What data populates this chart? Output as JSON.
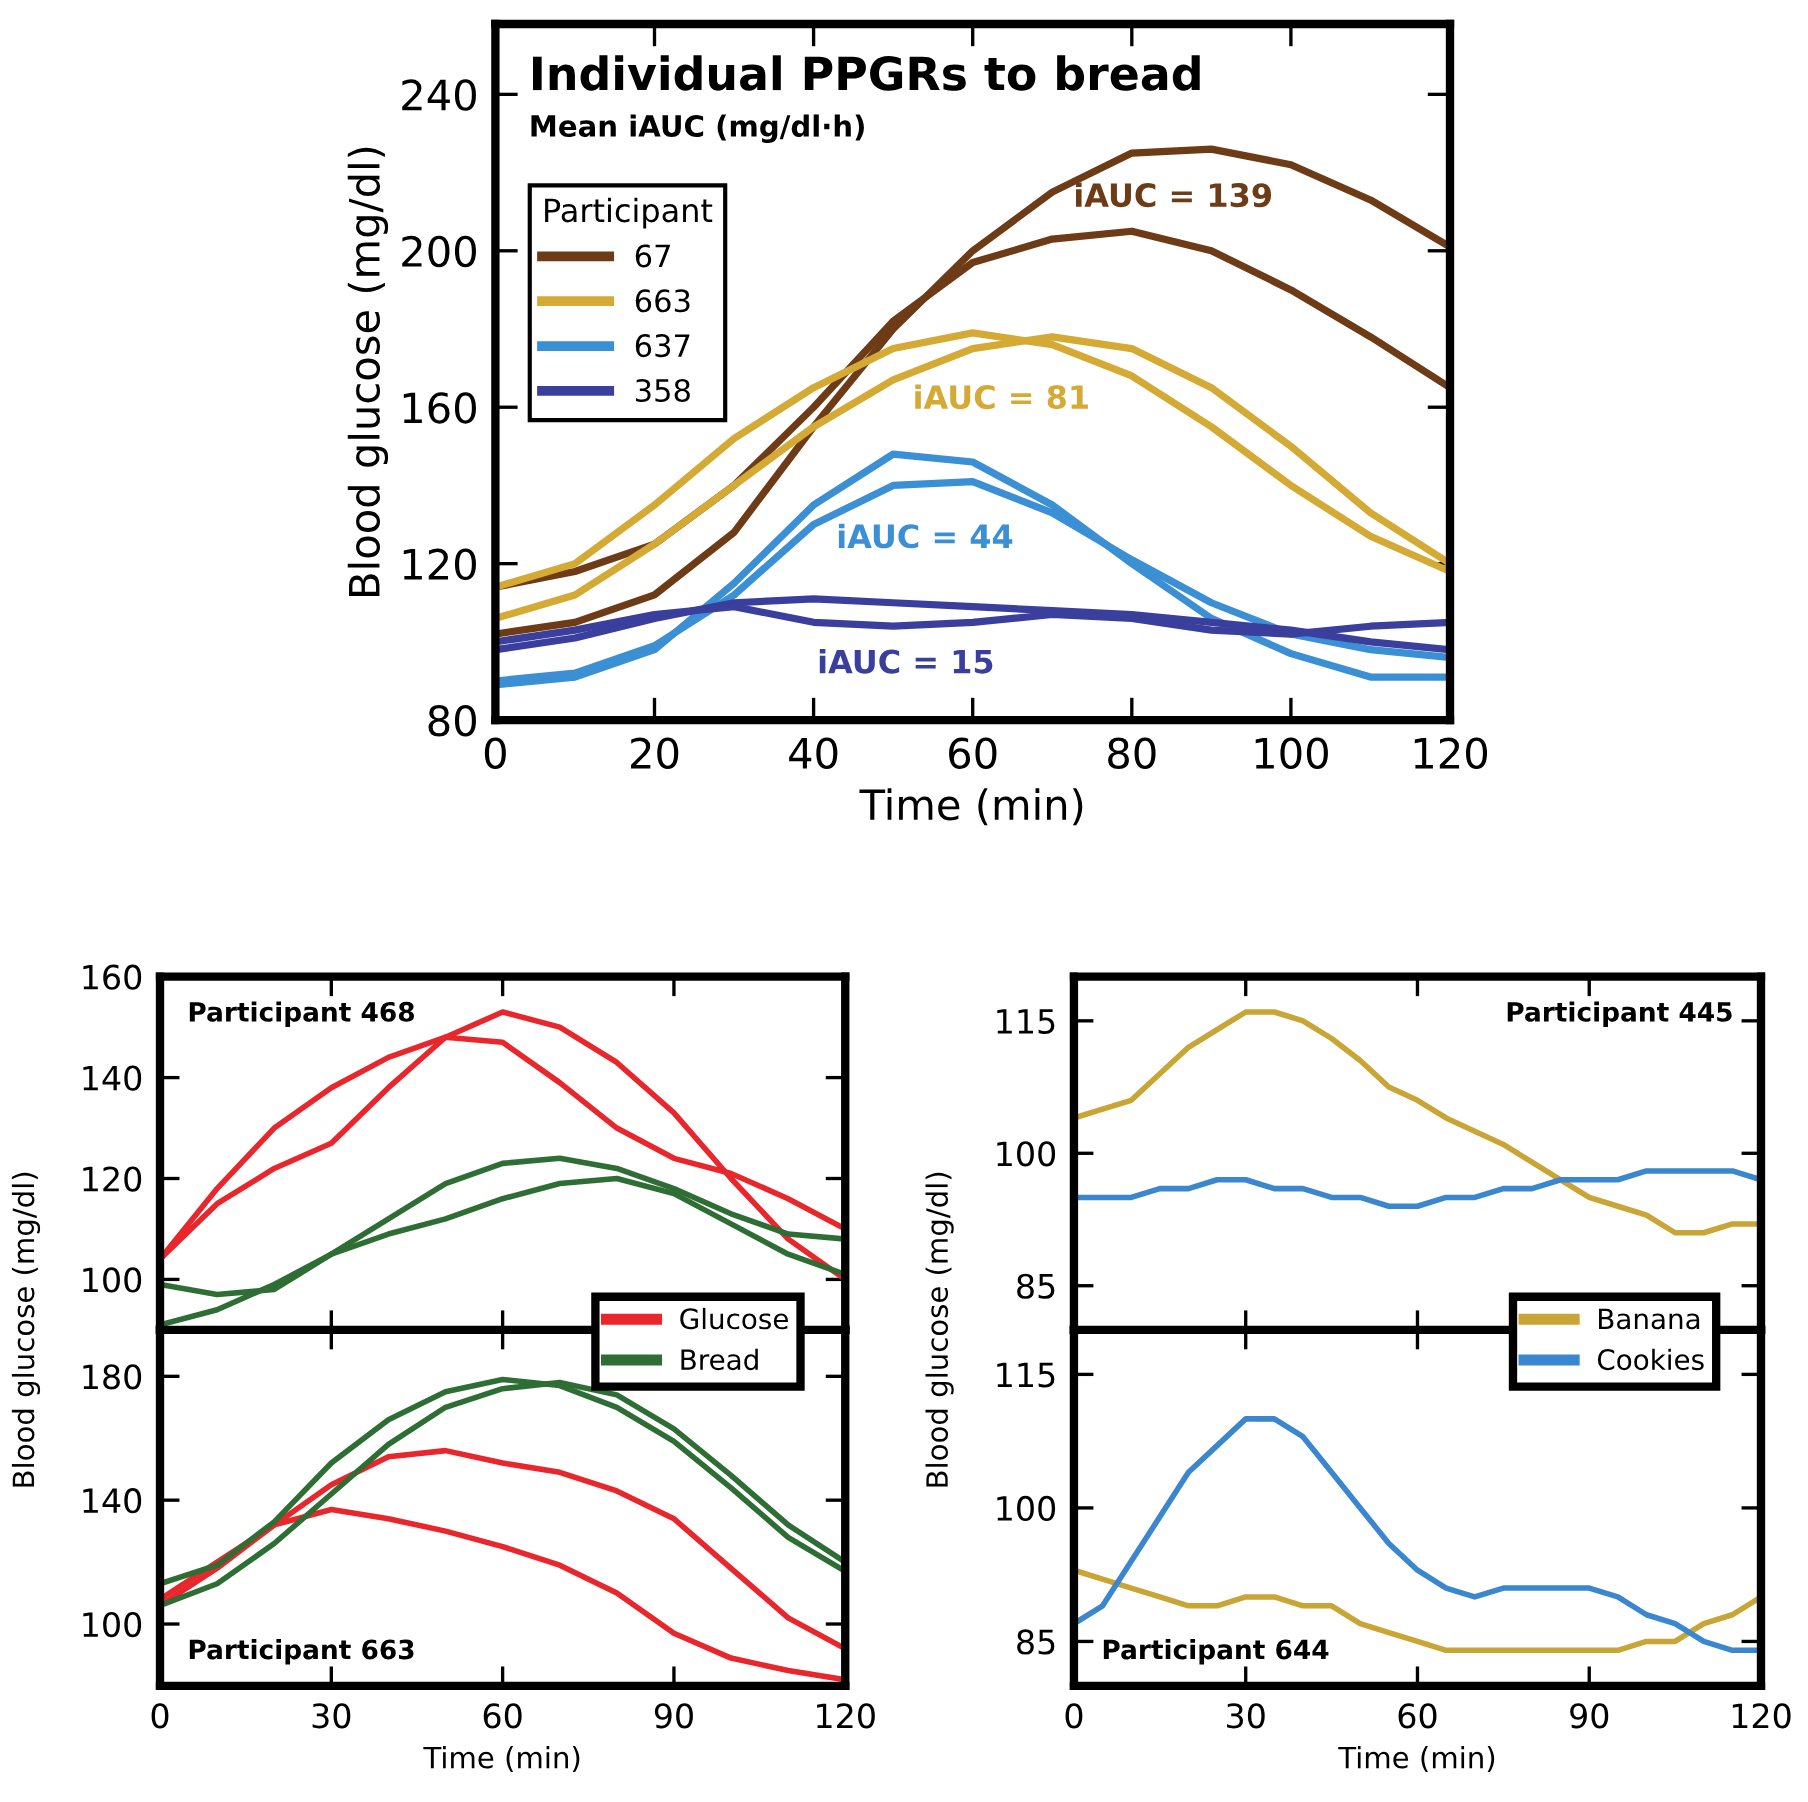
{
  "chart_data": [
    {
      "type": "line",
      "title": "Individual PPGRs to bread",
      "subtitle": "Mean iAUC (mg/dl·h)",
      "xlabel": "Time (min)",
      "ylabel": "Blood glucose (mg/dl)",
      "legend_title": "Participant",
      "legend": "top left",
      "x": [
        0,
        10,
        20,
        30,
        40,
        50,
        60,
        70,
        80,
        90,
        100,
        110,
        120
      ],
      "xlim": [
        0,
        120
      ],
      "xticks": [
        0,
        20,
        40,
        60,
        80,
        100,
        120
      ],
      "ylim": [
        80,
        258
      ],
      "yticks": [
        80,
        120,
        160,
        200,
        240
      ],
      "series": [
        {
          "name": "67",
          "color": "#6e3b17",
          "values": [
            102,
            105,
            112,
            128,
            155,
            180,
            200,
            215,
            225,
            226,
            222,
            213,
            201
          ]
        },
        {
          "color": "#6e3b17",
          "values": [
            114,
            118,
            125,
            140,
            160,
            182,
            197,
            203,
            205,
            200,
            190,
            178,
            165
          ]
        },
        {
          "name": "663",
          "color": "#d4aa35",
          "values": [
            114,
            120,
            135,
            152,
            165,
            175,
            179,
            176,
            168,
            155,
            140,
            127,
            118
          ]
        },
        {
          "color": "#d4aa35",
          "values": [
            106,
            112,
            125,
            140,
            155,
            167,
            175,
            178,
            175,
            165,
            150,
            133,
            120
          ]
        },
        {
          "name": "637",
          "color": "#3b8fd4",
          "values": [
            89,
            91,
            98,
            115,
            135,
            148,
            146,
            135,
            120,
            106,
            97,
            91,
            91
          ]
        },
        {
          "color": "#3b8fd4",
          "values": [
            90,
            92,
            99,
            112,
            130,
            140,
            141,
            133,
            121,
            110,
            102,
            98,
            96
          ]
        },
        {
          "name": "358",
          "color": "#3a3f9e",
          "values": [
            98,
            101,
            106,
            110,
            111,
            110,
            109,
            108,
            107,
            105,
            103,
            100,
            98
          ]
        },
        {
          "color": "#3a3f9e",
          "values": [
            100,
            103,
            107,
            109,
            105,
            104,
            105,
            107,
            106,
            103,
            102,
            104,
            105
          ]
        }
      ],
      "annotations": [
        "iAUC = 139",
        "iAUC = 81",
        "iAUC = 44",
        "iAUC = 15"
      ]
    },
    {
      "type": "line",
      "ylabel": "Blood glucose (mg/dl)",
      "legend": "bottom right",
      "tick_labels": "y",
      "x": [
        0,
        10,
        20,
        30,
        40,
        50,
        60,
        70,
        80,
        90,
        100,
        110,
        120
      ],
      "xlim": [
        0,
        120
      ],
      "xticks": [
        0,
        30,
        60,
        90,
        120
      ],
      "ylim": [
        90,
        160
      ],
      "yticks": [
        100,
        120,
        140,
        160
      ],
      "series": [
        {
          "name": "Glucose",
          "color": "#e8262c",
          "values": [
            104,
            118,
            130,
            138,
            144,
            148,
            147,
            139,
            130,
            124,
            121,
            116,
            110
          ]
        },
        {
          "color": "#e8262c",
          "values": [
            104,
            115,
            122,
            127,
            138,
            148,
            153,
            150,
            143,
            133,
            120,
            108,
            100
          ]
        },
        {
          "name": "Bread",
          "color": "#2e6e34",
          "values": [
            91,
            94,
            99,
            105,
            112,
            119,
            123,
            124,
            122,
            118,
            113,
            109,
            108
          ]
        },
        {
          "color": "#2e6e34",
          "values": [
            99,
            97,
            98,
            105,
            109,
            112,
            116,
            119,
            120,
            117,
            111,
            105,
            101
          ]
        }
      ],
      "annotations": [
        "Participant 468"
      ]
    },
    {
      "type": "line",
      "xlabel": "Time (min)",
      "x": [
        0,
        10,
        20,
        30,
        40,
        50,
        60,
        70,
        80,
        90,
        100,
        110,
        120
      ],
      "xlim": [
        0,
        120
      ],
      "xticks": [
        0,
        30,
        60,
        90,
        120
      ],
      "ylim": [
        80,
        195
      ],
      "yticks": [
        100,
        140,
        180
      ],
      "series": [
        {
          "color": "#e8262c",
          "values": [
            106,
            118,
            132,
            145,
            154,
            156,
            152,
            149,
            143,
            134,
            118,
            102,
            92
          ]
        },
        {
          "color": "#e8262c",
          "values": [
            108,
            120,
            132,
            137,
            134,
            130,
            125,
            119,
            110,
            97,
            89,
            85,
            82
          ]
        },
        {
          "color": "#2e6e34",
          "values": [
            113,
            119,
            133,
            152,
            166,
            175,
            179,
            177,
            170,
            159,
            144,
            128,
            117
          ]
        },
        {
          "color": "#2e6e34",
          "values": [
            106,
            113,
            126,
            142,
            158,
            170,
            176,
            178,
            174,
            163,
            148,
            132,
            120
          ]
        }
      ],
      "annotations": [
        "Participant 663"
      ]
    },
    {
      "type": "line",
      "ylabel": "Blood glucose (mg/dl)",
      "legend": "bottom right",
      "tick_labels": "y",
      "x": [
        0,
        5,
        10,
        15,
        20,
        25,
        30,
        35,
        40,
        45,
        50,
        55,
        60,
        65,
        70,
        75,
        80,
        85,
        90,
        95,
        100,
        105,
        110,
        115,
        120
      ],
      "xlim": [
        0,
        120
      ],
      "xticks": [
        0,
        30,
        60,
        90,
        120
      ],
      "ylim": [
        80,
        120
      ],
      "yticks": [
        85,
        100,
        115
      ],
      "series": [
        {
          "name": "Banana",
          "color": "#c9a535",
          "values": [
            104,
            105,
            106,
            109,
            112,
            114,
            116,
            116,
            115,
            113,
            110.5,
            107.5,
            106,
            104,
            102.5,
            101,
            99,
            97,
            95,
            94,
            93,
            91,
            91,
            92,
            92
          ]
        },
        {
          "name": "Cookies",
          "color": "#3a87cf",
          "values": [
            95,
            95,
            95,
            96,
            96,
            97,
            97,
            96,
            96,
            95,
            95,
            94,
            94,
            95,
            95,
            96,
            96,
            97,
            97,
            97,
            98,
            98,
            98,
            98,
            97
          ]
        }
      ],
      "annotations": [
        "Participant 445"
      ]
    },
    {
      "type": "line",
      "xlabel": "Time (min)",
      "x": [
        0,
        5,
        10,
        15,
        20,
        25,
        30,
        35,
        40,
        45,
        50,
        55,
        60,
        65,
        70,
        75,
        80,
        85,
        90,
        95,
        100,
        105,
        110,
        115,
        120
      ],
      "xlim": [
        0,
        120
      ],
      "xticks": [
        0,
        30,
        60,
        90,
        120
      ],
      "ylim": [
        80,
        120
      ],
      "yticks": [
        85,
        100,
        115
      ],
      "series": [
        {
          "color": "#c9a535",
          "values": [
            93,
            92,
            91,
            90,
            89,
            89,
            90,
            90,
            89,
            89,
            87,
            86,
            85,
            84,
            84,
            84,
            84,
            84,
            84,
            84,
            85,
            85,
            87,
            88,
            90
          ]
        },
        {
          "color": "#3a87cf",
          "values": [
            87,
            89,
            94,
            99,
            104,
            107,
            110,
            110,
            108,
            104,
            100,
            96,
            93,
            91,
            90,
            91,
            91,
            91,
            91,
            90,
            88,
            87,
            85,
            84,
            84
          ]
        }
      ],
      "annotations": [
        "Participant 644"
      ]
    }
  ]
}
